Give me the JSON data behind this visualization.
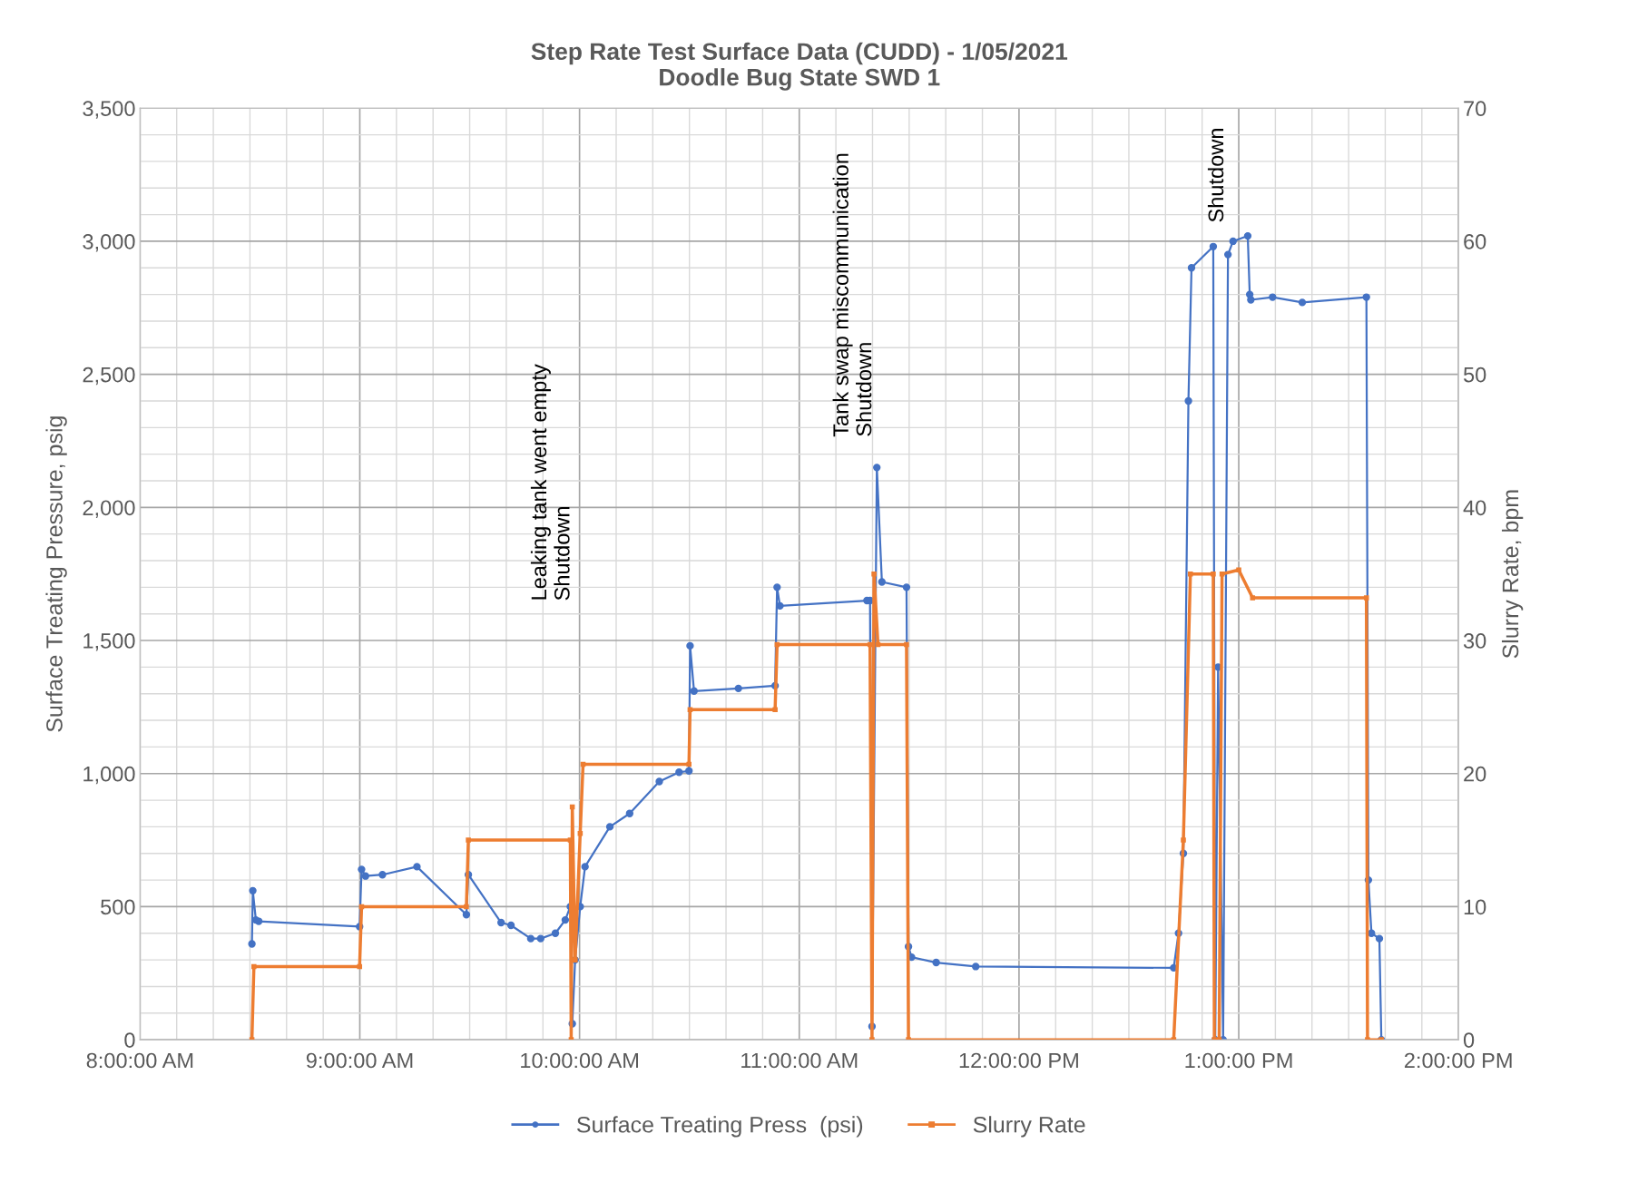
{
  "chart_data": {
    "type": "line",
    "title": "Step Rate Test Surface Data (CUDD) - 1/05/2021\nDoodle Bug State SWD 1",
    "ylabel": "Surface Treating Pressure, psig",
    "y2label": "Slurry Rate, bpm",
    "xlim": [
      8,
      14
    ],
    "xticks": [
      {
        "value": 8,
        "label": "8:00:00 AM"
      },
      {
        "value": 9,
        "label": "9:00:00 AM"
      },
      {
        "value": 10,
        "label": "10:00:00 AM"
      },
      {
        "value": 11,
        "label": "11:00:00 AM"
      },
      {
        "value": 12,
        "label": "12:00:00 PM"
      },
      {
        "value": 13,
        "label": "1:00:00 PM"
      },
      {
        "value": 14,
        "label": "2:00:00 PM"
      }
    ],
    "ylim": [
      0,
      3500
    ],
    "yticks": [
      {
        "value": 0,
        "label": "0"
      },
      {
        "value": 500,
        "label": "500"
      },
      {
        "value": 1000,
        "label": "1,000"
      },
      {
        "value": 1500,
        "label": "1,500"
      },
      {
        "value": 2000,
        "label": "2,000"
      },
      {
        "value": 2500,
        "label": "2,500"
      },
      {
        "value": 3000,
        "label": "3,000"
      },
      {
        "value": 3500,
        "label": "3,500"
      }
    ],
    "y2lim": [
      0,
      70
    ],
    "y2ticks": [
      0,
      10,
      20,
      30,
      40,
      50,
      60,
      70
    ],
    "grid": true,
    "legend": "bottom",
    "series": [
      {
        "name": "Surface Treating Press  (psi)",
        "color": "#4472c4",
        "marker": "circle",
        "x": [
          8.509,
          8.513,
          8.527,
          8.54,
          8.999,
          9.008,
          9.026,
          9.103,
          9.26,
          9.485,
          9.494,
          9.643,
          9.688,
          9.778,
          9.823,
          9.89,
          9.935,
          9.958,
          9.967,
          9.98,
          10.003,
          10.025,
          10.138,
          10.228,
          10.363,
          10.453,
          10.498,
          10.503,
          10.521,
          10.723,
          10.89,
          10.899,
          10.912,
          11.308,
          11.322,
          11.331,
          11.353,
          11.376,
          11.488,
          11.497,
          11.511,
          11.623,
          11.803,
          12.704,
          12.726,
          12.748,
          12.771,
          12.785,
          12.884,
          12.893,
          12.906,
          12.929,
          12.951,
          12.974,
          13.041,
          13.05,
          13.055,
          13.154,
          13.289,
          13.581,
          13.59,
          13.604,
          13.64,
          13.649
        ],
        "values": [
          360,
          560,
          450,
          445,
          425,
          640,
          615,
          620,
          650,
          470,
          620,
          440,
          430,
          380,
          380,
          400,
          450,
          500,
          60,
          300,
          500,
          650,
          800,
          850,
          970,
          1005,
          1010,
          1480,
          1310,
          1320,
          1330,
          1700,
          1630,
          1650,
          1650,
          50,
          2150,
          1720,
          1700,
          350,
          310,
          290,
          275,
          270,
          400,
          700,
          2400,
          2900,
          2980,
          0,
          1400,
          0,
          2950,
          3000,
          3020,
          2800,
          2780,
          2790,
          2770,
          2790,
          600,
          400,
          380,
          0
        ]
      },
      {
        "name": "Slurry Rate",
        "color": "#ed7d31",
        "axis": "y2",
        "marker": "square",
        "x": [
          8.509,
          8.518,
          8.999,
          9.008,
          9.485,
          9.494,
          9.958,
          9.962,
          9.967,
          9.98,
          10.003,
          10.016,
          10.498,
          10.503,
          10.89,
          10.899,
          11.322,
          11.331,
          11.34,
          11.358,
          11.488,
          11.497,
          12.704,
          12.748,
          12.78,
          12.884,
          12.889,
          12.911,
          12.924,
          13.0,
          13.063,
          13.581,
          13.586,
          13.649
        ],
        "values": [
          0,
          5.5,
          5.5,
          10,
          10,
          15,
          15,
          0,
          17.5,
          6,
          15.5,
          20.7,
          20.7,
          24.8,
          24.8,
          29.7,
          29.7,
          0,
          35,
          29.7,
          29.7,
          0,
          0,
          15,
          35,
          35,
          0,
          0,
          35,
          35.3,
          33.2,
          33.2,
          0,
          0
        ]
      }
    ],
    "annotations": [
      "Leaking tank went empty\nShutdown",
      "Tank swap miscommunication\nShutdown",
      "Shutdown"
    ]
  }
}
